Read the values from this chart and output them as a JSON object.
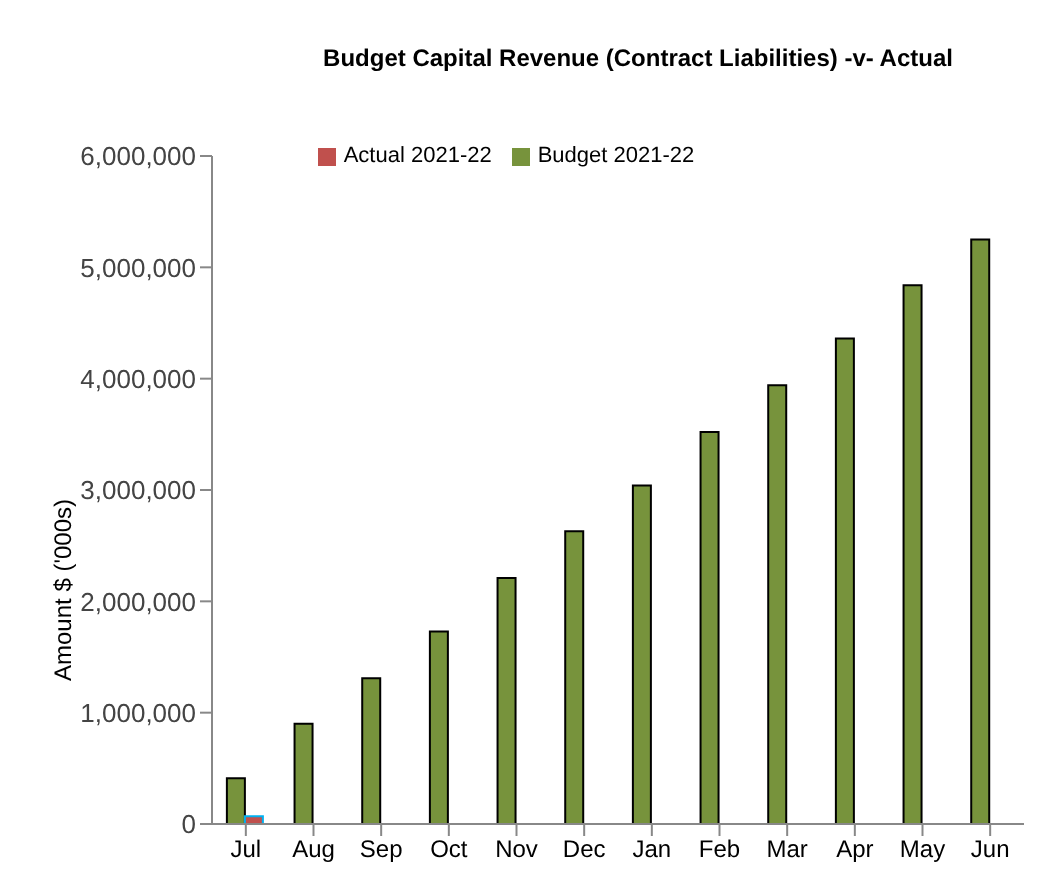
{
  "chart_data": {
    "type": "bar",
    "title": "Budget Capital Revenue (Contract Liabilities) -v- Actual",
    "ylabel": "Amount $ ('000s)",
    "categories": [
      "Jul",
      "Aug",
      "Sep",
      "Oct",
      "Nov",
      "Dec",
      "Jan",
      "Feb",
      "Mar",
      "Apr",
      "May",
      "Jun"
    ],
    "series": [
      {
        "name": "Budget 2021-22",
        "color": "#77933c",
        "values": [
          410000,
          900000,
          1310000,
          1730000,
          2210000,
          2630000,
          3040000,
          3520000,
          3940000,
          4360000,
          4840000,
          5250000
        ]
      },
      {
        "name": "Actual 2021-22",
        "color": "#c0504d",
        "values": [
          70000,
          null,
          null,
          null,
          null,
          null,
          null,
          null,
          null,
          null,
          null,
          null
        ]
      }
    ],
    "ylim": [
      0,
      6000000
    ],
    "yticks": [
      0,
      {
        "value": 1000000,
        "label": "1,000,000"
      },
      {
        "value": 2000000,
        "label": "2,000,000"
      },
      {
        "value": 3000000,
        "label": "3,000,000"
      },
      {
        "value": 4000000,
        "label": "4,000,000"
      },
      {
        "value": 5000000,
        "label": "5,000,000"
      },
      {
        "value": 6000000,
        "label": "6,000,000"
      }
    ],
    "grid": false,
    "legend": "top"
  }
}
